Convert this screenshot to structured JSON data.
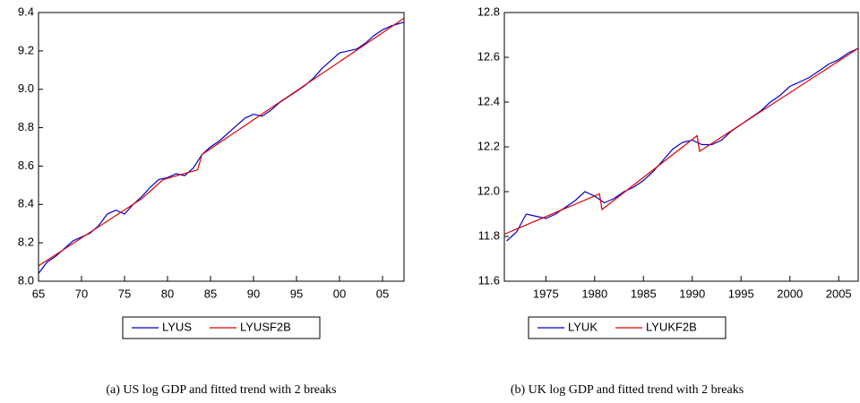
{
  "chart_data": [
    {
      "type": "line",
      "caption": "(a)  US log GDP and fitted trend with 2 breaks",
      "xlim": [
        1965,
        2007.5
      ],
      "ylim": [
        8.0,
        9.4
      ],
      "xticks": [
        {
          "value": 1965,
          "label": "65"
        },
        {
          "value": 1970,
          "label": "70"
        },
        {
          "value": 1975,
          "label": "75"
        },
        {
          "value": 1980,
          "label": "80"
        },
        {
          "value": 1985,
          "label": "85"
        },
        {
          "value": 1990,
          "label": "90"
        },
        {
          "value": 1995,
          "label": "95"
        },
        {
          "value": 2000,
          "label": "00"
        },
        {
          "value": 2005,
          "label": "05"
        }
      ],
      "yticks": [
        {
          "value": 8.0,
          "label": "8.0"
        },
        8.2,
        8.4,
        8.6,
        8.8,
        {
          "value": 9.0,
          "label": "9.0"
        },
        9.2,
        9.4
      ],
      "series": [
        {
          "name": "LYUS",
          "color": "#0000cc",
          "x": [
            1965,
            1966,
            1967,
            1968,
            1969,
            1970,
            1971,
            1972,
            1973,
            1974,
            1975,
            1976,
            1977,
            1978,
            1979,
            1980,
            1981,
            1982,
            1983,
            1984,
            1985,
            1986,
            1987,
            1988,
            1989,
            1990,
            1991,
            1992,
            1993,
            1994,
            1995,
            1996,
            1997,
            1998,
            1999,
            2000,
            2001,
            2002,
            2003,
            2004,
            2005,
            2006,
            2007.5
          ],
          "values": [
            8.04,
            8.1,
            8.13,
            8.17,
            8.21,
            8.23,
            8.25,
            8.29,
            8.35,
            8.37,
            8.35,
            8.4,
            8.44,
            8.49,
            8.53,
            8.54,
            8.56,
            8.55,
            8.59,
            8.66,
            8.7,
            8.73,
            8.77,
            8.81,
            8.85,
            8.87,
            8.86,
            8.89,
            8.93,
            8.96,
            8.99,
            9.02,
            9.06,
            9.11,
            9.15,
            9.19,
            9.2,
            9.21,
            9.24,
            9.28,
            9.31,
            9.33,
            9.35
          ]
        },
        {
          "name": "LYUSF2B",
          "color": "#dd0000",
          "x": [
            1965,
            1977,
            1979.5,
            1983.5,
            1984,
            2007.5
          ],
          "values": [
            8.08,
            8.43,
            8.53,
            8.58,
            8.66,
            9.37
          ]
        }
      ]
    },
    {
      "type": "line",
      "caption": "(b)  UK log GDP and fitted trend with 2 breaks",
      "xlim": [
        1970.75,
        2007
      ],
      "ylim": [
        11.6,
        12.8
      ],
      "xticks": [
        1975,
        1980,
        1985,
        1990,
        1995,
        2000,
        2005
      ],
      "yticks": [
        {
          "value": 11.6,
          "label": "11.6"
        },
        11.8,
        {
          "value": 12.0,
          "label": "12.0"
        },
        12.2,
        12.4,
        12.6,
        {
          "value": 12.8,
          "label": "12.8"
        }
      ],
      "series": [
        {
          "name": "LYUK",
          "color": "#0000cc",
          "x": [
            1971,
            1972,
            1973,
            1974,
            1975,
            1976,
            1977,
            1978,
            1979,
            1980,
            1981,
            1982,
            1983,
            1984,
            1985,
            1986,
            1987,
            1988,
            1989,
            1990,
            1991,
            1992,
            1993,
            1994,
            1995,
            1996,
            1997,
            1998,
            1999,
            2000,
            2001,
            2002,
            2003,
            2004,
            2005,
            2006,
            2007
          ],
          "values": [
            11.78,
            11.82,
            11.9,
            11.89,
            11.88,
            11.9,
            11.93,
            11.96,
            12.0,
            11.98,
            11.95,
            11.97,
            12.0,
            12.02,
            12.05,
            12.09,
            12.14,
            12.19,
            12.22,
            12.23,
            12.21,
            12.21,
            12.23,
            12.27,
            12.3,
            12.33,
            12.36,
            12.4,
            12.43,
            12.47,
            12.49,
            12.51,
            12.54,
            12.57,
            12.59,
            12.62,
            12.64
          ]
        },
        {
          "name": "LYUKF2B",
          "color": "#dd0000",
          "x": [
            1970.75,
            1980.5,
            1980.75,
            1990.5,
            1990.75,
            2007
          ],
          "values": [
            11.81,
            11.99,
            11.92,
            12.25,
            12.18,
            12.64
          ]
        }
      ]
    }
  ]
}
